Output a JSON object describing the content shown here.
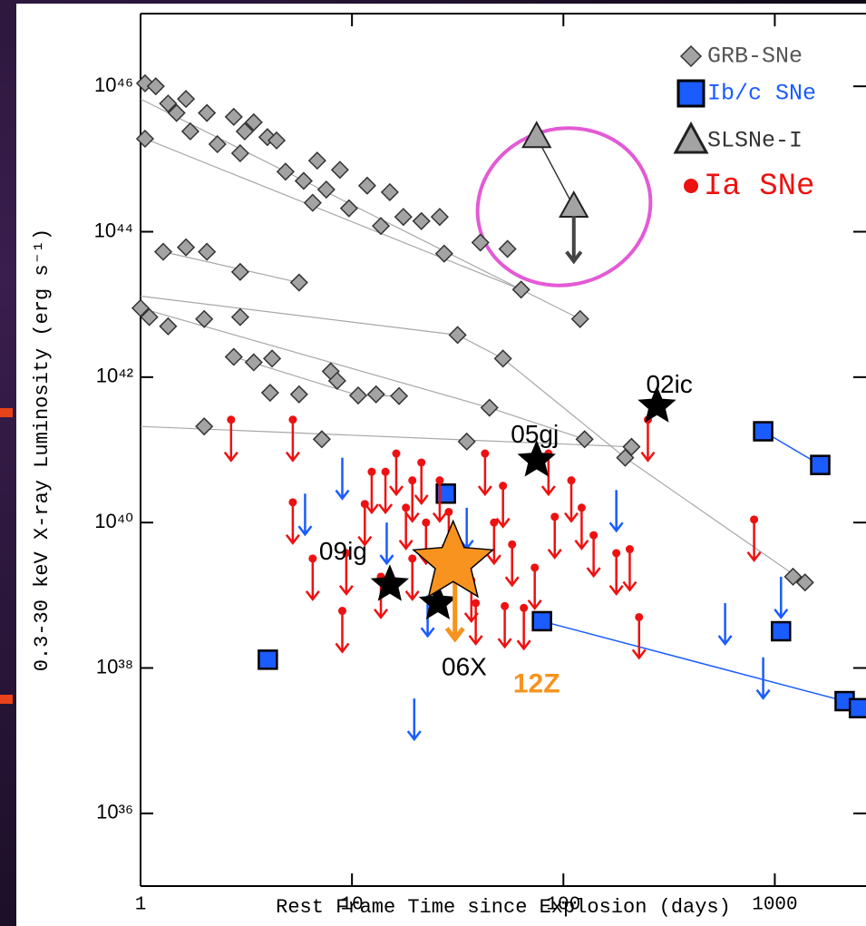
{
  "chart_data": {
    "type": "scatter",
    "xlabel": "Rest Frame Time since Explosion (days)",
    "ylabel": "0.3-30 keV X-ray Luminosity (erg s⁻¹)",
    "xlog": true,
    "ylog": true,
    "xlim": [
      1,
      2700
    ],
    "ylim": [
      1e+35,
      1e+47
    ],
    "xticks": [
      1,
      10,
      100,
      1000
    ],
    "yticks": [
      {
        "value": 1e+36,
        "label": "10³⁶"
      },
      {
        "value": 1e+38,
        "label": "10³⁸"
      },
      {
        "value": 1e+40,
        "label": "10⁴⁰"
      },
      {
        "value": 1e+42,
        "label": "10⁴²"
      },
      {
        "value": 1e+44,
        "label": "10⁴⁴"
      },
      {
        "value": 1e+46,
        "label": "10⁴⁶"
      }
    ],
    "legend": "upper right",
    "series": [
      {
        "name": "GRB-SNe",
        "color": "#a3a3a3",
        "text_color": "#555555",
        "marker": "diamond",
        "x": [
          1.05,
          1.18,
          1.05,
          1.35,
          1.48,
          1.64,
          1.72,
          2.06,
          2.31,
          2.76,
          3.11,
          3.43,
          2.96,
          3.98,
          4.4,
          4.85,
          5.91,
          6.85,
          7.56,
          8.77,
          6.52,
          9.68,
          11.8,
          13.7,
          15.1,
          17.5,
          21.3,
          26,
          27.3,
          40.5,
          54.4,
          63.1,
          120,
          1.28,
          1.64,
          2.06,
          2.96,
          5.62,
          1,
          1.1,
          1.35,
          2,
          2.96,
          2.76,
          3.43,
          4.19,
          4.1,
          5.62,
          7.94,
          8.51,
          10.7,
          13,
          16.7,
          31.6,
          51.8,
          44.7,
          34.9,
          2,
          7.2,
          126,
          196,
          210,
          1220,
          1390
        ],
        "y": [
          1.1e+46,
          1e+46,
          1.9e+45,
          5.8e+45,
          4.3e+45,
          6.7e+45,
          2.4e+45,
          4.3e+45,
          1.6e+45,
          3.8e+45,
          2.4e+45,
          3.2e+45,
          1.2e+45,
          2e+45,
          1.8e+45,
          6.7e+44,
          5e+44,
          9.5e+44,
          3.8e+44,
          7.1e+44,
          2.5e+44,
          2.1e+44,
          4.3e+44,
          1.2e+44,
          3.5e+44,
          1.6e+44,
          1.4e+44,
          1.6e+44,
          5e+43,
          7.1e+43,
          5.8e+43,
          1.6e+43,
          6.3e+42,
          5.3e+43,
          6.1e+43,
          5.3e+43,
          2.8e+43,
          2e+43,
          8.9e+42,
          6.7e+42,
          5e+42,
          6.3e+42,
          6.7e+42,
          1.9e+42,
          1.6e+42,
          1.8e+42,
          6.1e+41,
          5.8e+41,
          1.2e+42,
          8.9e+41,
          5.6e+41,
          5.8e+41,
          5.5e+41,
          3.8e+42,
          1.8e+42,
          3.8e+41,
          1.3e+41,
          2.1e+41,
          1.4e+41,
          1.4e+41,
          7.8e+40,
          1.1e+41,
          1.8e+39,
          1.5e+39
        ]
      },
      {
        "name": "Ib/c SNe",
        "color": "#1a5cff",
        "text_color": "#1a5cff",
        "marker": "square",
        "x": [
          4,
          27.8,
          79.2,
          881,
          1640,
          1070,
          2140,
          2500,
          6,
          9,
          14.6,
          34.9,
          178,
          582,
          881,
          1070,
          19.7,
          22.8
        ],
        "y": [
          1.3e+38,
          2.5e+40,
          4.4e+38,
          1.8e+41,
          6.2e+40,
          3.2e+38,
          3.5e+37,
          2.8e+37,
          2.5e+40,
          7.8e+40,
          1e+40,
          1.6e+40,
          2.8e+40,
          7.8e+38,
          1.4e+38,
          1.8e+39,
          3.8e+37,
          1e+39
        ],
        "upper_limit": [
          false,
          false,
          false,
          false,
          false,
          false,
          false,
          false,
          true,
          true,
          true,
          true,
          true,
          true,
          true,
          true,
          true,
          true
        ]
      },
      {
        "name": "SLSNe-I",
        "color": "#a3a3a3",
        "text_color": "#333333",
        "marker": "triangle",
        "x": [
          74.7,
          112
        ],
        "y": [
          2e+45,
          2.2e+44
        ],
        "upper_limit": [
          false,
          true
        ]
      },
      {
        "name": "Ia SNe",
        "color": "#ee1111",
        "text_color": "#ee1111",
        "marker": "circle",
        "x": [
          2.68,
          5.25,
          5.25,
          6.52,
          9,
          9.4,
          11.5,
          12.4,
          14.4,
          16.2,
          18,
          19.3,
          21.3,
          22.4,
          26,
          28.7,
          19.3,
          36.7,
          42.6,
          47,
          51.8,
          57.2,
          65,
          73.2,
          85,
          91,
          109,
          122,
          139,
          178,
          206,
          228,
          251,
          798,
          13.7,
          52.8,
          38.5
        ],
        "y": [
          2.6e+41,
          2.6e+41,
          1.9e+40,
          3.2e+39,
          6.1e+38,
          3.8e+39,
          1.8e+40,
          5e+40,
          5e+40,
          8.9e+40,
          1.6e+40,
          3.8e+40,
          6.7e+40,
          1e+40,
          3.8e+40,
          1.4e+40,
          3.2e+39,
          1.6e+39,
          8.9e+40,
          1e+40,
          3.2e+40,
          5e+39,
          6.7e+38,
          2.4e+39,
          8.9e+40,
          1.2e+40,
          3.8e+40,
          1.6e+40,
          6.7e+39,
          3.8e+39,
          4.3e+39,
          5e+38,
          2.6e+41,
          1.1e+40,
          1.8e+39,
          7.1e+38,
          7.8e+38
        ],
        "upper_limit": [
          true,
          true,
          true,
          true,
          true,
          true,
          true,
          true,
          true,
          true,
          true,
          true,
          true,
          true,
          true,
          true,
          true,
          true,
          true,
          true,
          true,
          true,
          true,
          true,
          true,
          true,
          true,
          true,
          true,
          true,
          true,
          true,
          true,
          true,
          true,
          true,
          true
        ]
      }
    ],
    "curves": [
      {
        "color": "#a8a8a8",
        "x": [
          1,
          120
        ],
        "y": [
          6.7e+45,
          6.3e+42
        ]
      },
      {
        "color": "#a8a8a8",
        "x": [
          1.05,
          63.1
        ],
        "y": [
          1.9e+45,
          1.6e+43
        ]
      },
      {
        "color": "#a8a8a8",
        "x": [
          1,
          31.6,
          51.8,
          196,
          1390
        ],
        "y": [
          1.3e+43,
          3.8e+42,
          1.8e+42,
          7.8e+40,
          1.5e+39
        ]
      },
      {
        "color": "#a8a8a8",
        "x": [
          1,
          44.7,
          126
        ],
        "y": [
          8.9e+42,
          3.8e+41,
          1.4e+41
        ]
      },
      {
        "color": "#a8a8a8",
        "x": [
          1,
          210
        ],
        "y": [
          2.1e+41,
          1.1e+41
        ]
      },
      {
        "color": "#a8a8a8",
        "x": [
          1.28,
          5.62
        ],
        "y": [
          5.3e+43,
          2e+43
        ]
      },
      {
        "color": "#a8a8a8",
        "x": [
          2.76,
          10.7,
          16.7
        ],
        "y": [
          1.9e+42,
          5.6e+41,
          5.5e+41
        ]
      },
      {
        "color": "#1a5cff",
        "x": [
          79.2,
          2140
        ],
        "y": [
          4.4e+38,
          3.5e+37
        ]
      },
      {
        "color": "#1a5cff",
        "x": [
          881,
          1640
        ],
        "y": [
          1.8e+41,
          6.2e+40
        ]
      },
      {
        "color": "#333333",
        "x": [
          74.7,
          112
        ],
        "y": [
          2e+45,
          2.2e+44
        ]
      }
    ],
    "labeled_sne": [
      {
        "label": "02ic",
        "x": 277,
        "y": 4e+41,
        "color": "#000000"
      },
      {
        "label": "05gj",
        "x": 74.7,
        "y": 7.2e+40,
        "color": "#000000"
      },
      {
        "label": "09ig",
        "x": 15.1,
        "y": 1.4e+39,
        "color": "#000000"
      },
      {
        "label": "06X",
        "x": 25.5,
        "y": 7.8e+38,
        "color": "#000000"
      },
      {
        "label": "12Z",
        "x": 30.1,
        "y": 2.8e+39,
        "color": "#f7931e",
        "upper_limit": true
      }
    ]
  }
}
